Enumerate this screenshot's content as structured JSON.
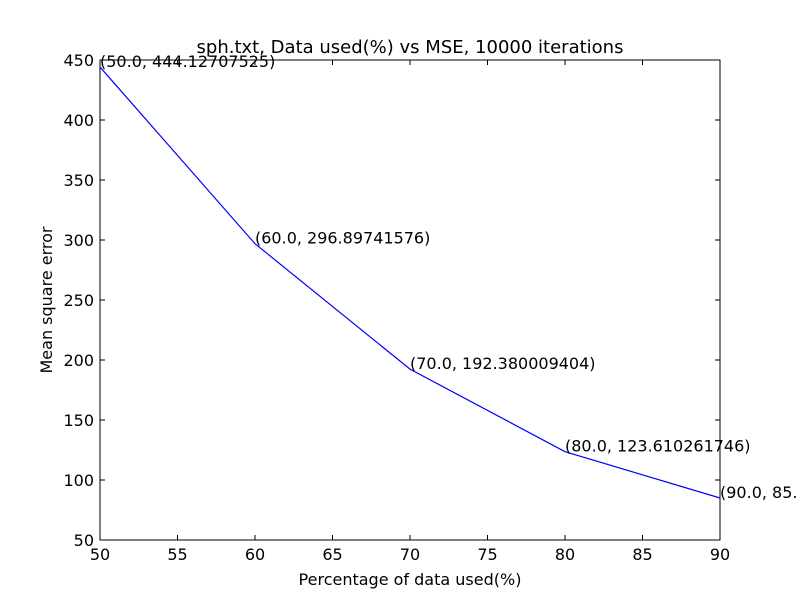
{
  "chart_data": {
    "type": "line",
    "title": "sph.txt, Data used(%) vs MSE, 10000 iterations",
    "xlabel": "Percentage of data used(%)",
    "ylabel": "Mean square error",
    "xlim": [
      50,
      90
    ],
    "ylim": [
      50,
      450
    ],
    "xticks": [
      50,
      55,
      60,
      65,
      70,
      75,
      80,
      85,
      90
    ],
    "yticks": [
      50,
      100,
      150,
      200,
      250,
      300,
      350,
      400,
      450
    ],
    "grid": false,
    "line_color": "#0000ff",
    "series": [
      {
        "x": [
          50,
          60,
          70,
          80,
          90
        ],
        "y": [
          444.12707525,
          296.89741576,
          192.380009404,
          123.610261746,
          85.0
        ]
      }
    ],
    "annotations": [
      "(50.0, 444.12707525)",
      "(60.0, 296.89741576)",
      "(70.0, 192.380009404)",
      "(80.0, 123.610261746)",
      "(90.0, 85."
    ]
  }
}
